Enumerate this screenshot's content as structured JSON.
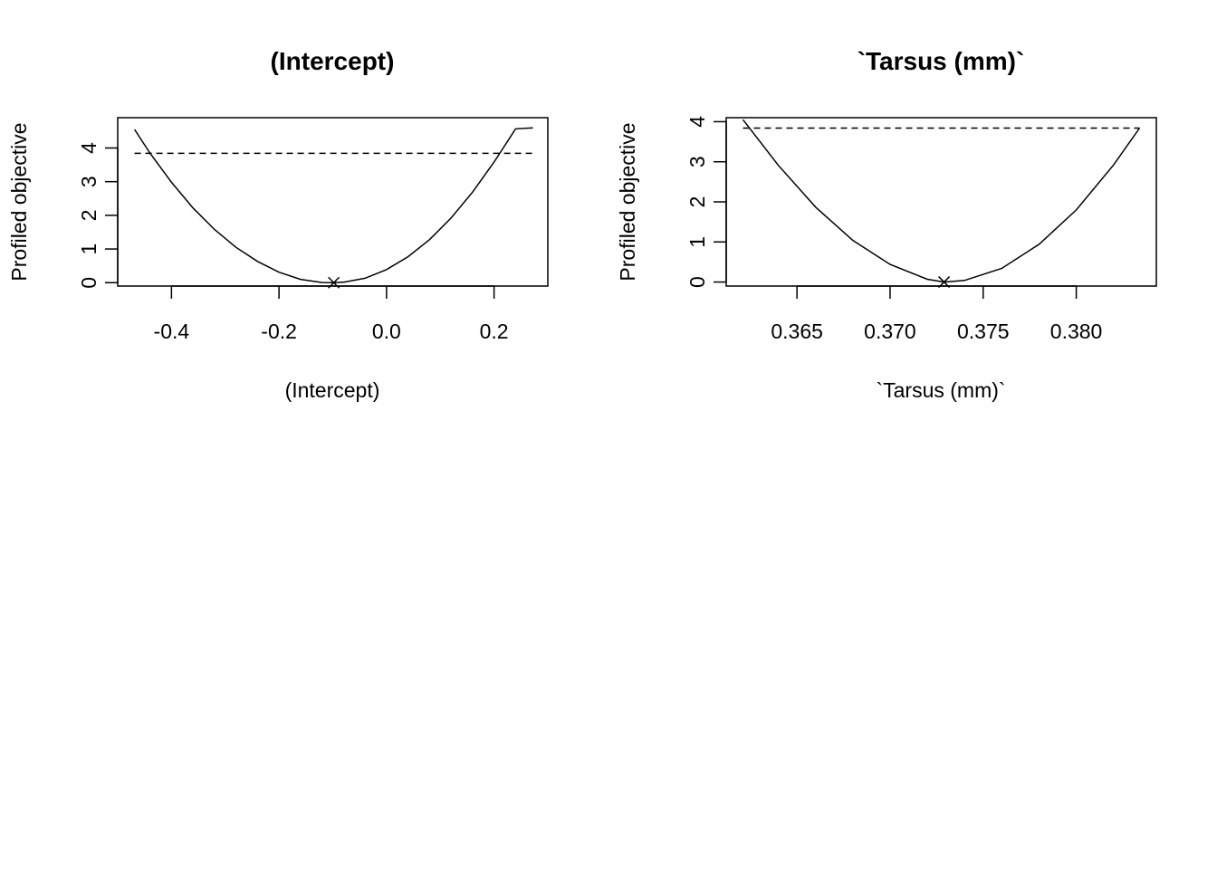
{
  "chart_data": [
    {
      "type": "line",
      "title": "(Intercept)",
      "xlabel": "(Intercept)",
      "ylabel": "Profiled objective",
      "xlim": [
        -0.5,
        0.3
      ],
      "ylim": [
        -0.1,
        4.9
      ],
      "xticks": [
        -0.4,
        -0.2,
        0.0,
        0.2
      ],
      "xtick_labels": [
        "-0.4",
        "-0.2",
        "0.0",
        "0.2"
      ],
      "yticks": [
        0,
        1,
        2,
        3,
        4
      ],
      "ytick_labels": [
        "0",
        "1",
        "2",
        "3",
        "4"
      ],
      "grid": false,
      "series": [
        {
          "style": "solid",
          "x": [
            -0.4686,
            -0.44,
            -0.4,
            -0.36,
            -0.32,
            -0.28,
            -0.24,
            -0.2,
            -0.16,
            -0.12,
            -0.0981,
            -0.08,
            -0.04,
            0.0,
            0.04,
            0.08,
            0.12,
            0.16,
            0.2,
            0.24,
            0.2724
          ],
          "y": [
            4.55,
            3.85,
            2.98,
            2.22,
            1.58,
            1.05,
            0.63,
            0.31,
            0.1,
            0.005,
            0.0,
            0.012,
            0.13,
            0.39,
            0.77,
            1.28,
            1.92,
            2.69,
            3.58,
            4.57,
            4.6
          ]
        },
        {
          "style": "dashed",
          "x": [
            -0.4686,
            0.2724
          ],
          "y": [
            3.84,
            3.84
          ]
        }
      ],
      "marker": {
        "symbol": "x",
        "x": -0.0981,
        "y": 0
      }
    },
    {
      "type": "line",
      "title": "`Tarsus (mm)`",
      "xlabel": "`Tarsus (mm)`",
      "ylabel": "Profiled objective",
      "xlim": [
        0.3612,
        0.3843
      ],
      "ylim": [
        -0.1,
        4.1
      ],
      "xticks": [
        0.365,
        0.37,
        0.375,
        0.38
      ],
      "xtick_labels": [
        "0.365",
        "0.370",
        "0.375",
        "0.380"
      ],
      "yticks": [
        0,
        1,
        2,
        3,
        4
      ],
      "ytick_labels": [
        "0",
        "1",
        "2",
        "3",
        "4"
      ],
      "grid": false,
      "series": [
        {
          "style": "solid",
          "x": [
            0.3621,
            0.364,
            0.366,
            0.368,
            0.37,
            0.372,
            0.3729,
            0.374,
            0.376,
            0.378,
            0.38,
            0.382,
            0.3834
          ],
          "y": [
            4.05,
            2.91,
            1.87,
            1.04,
            0.44,
            0.07,
            0.0,
            0.04,
            0.34,
            0.94,
            1.8,
            2.92,
            3.84
          ]
        },
        {
          "style": "dashed",
          "x": [
            0.3621,
            0.3834
          ],
          "y": [
            3.84,
            3.84
          ]
        }
      ],
      "marker": {
        "symbol": "x",
        "x": 0.3729,
        "y": 0
      }
    }
  ]
}
